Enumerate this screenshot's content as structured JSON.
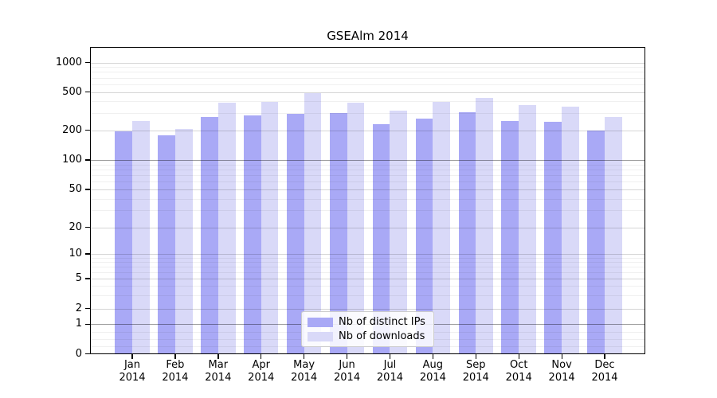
{
  "title": "GSEAlm 2014",
  "chart_data": {
    "type": "bar",
    "title": "GSEAlm 2014",
    "categories": [
      "Jan 2014",
      "Feb 2014",
      "Mar 2014",
      "Apr 2014",
      "May 2014",
      "Jun 2014",
      "Jul 2014",
      "Aug 2014",
      "Sep 2014",
      "Oct 2014",
      "Nov 2014",
      "Dec 2014"
    ],
    "series": [
      {
        "name": "Nb of distinct IPs",
        "color": "#a9a9f6",
        "values": [
          195,
          178,
          277,
          284,
          296,
          301,
          231,
          264,
          305,
          249,
          246,
          199
        ]
      },
      {
        "name": "Nb of downloads",
        "color": "#d9d9f8",
        "values": [
          251,
          206,
          390,
          393,
          489,
          383,
          317,
          396,
          434,
          364,
          349,
          272
        ]
      }
    ],
    "xlabel": "",
    "ylabel": "",
    "yscale": "log",
    "yticks": [
      0,
      1,
      2,
      5,
      10,
      20,
      50,
      100,
      200,
      500,
      1000
    ],
    "ylim": [
      0,
      1400
    ],
    "grid": true,
    "legend_position": "lower center inside"
  }
}
